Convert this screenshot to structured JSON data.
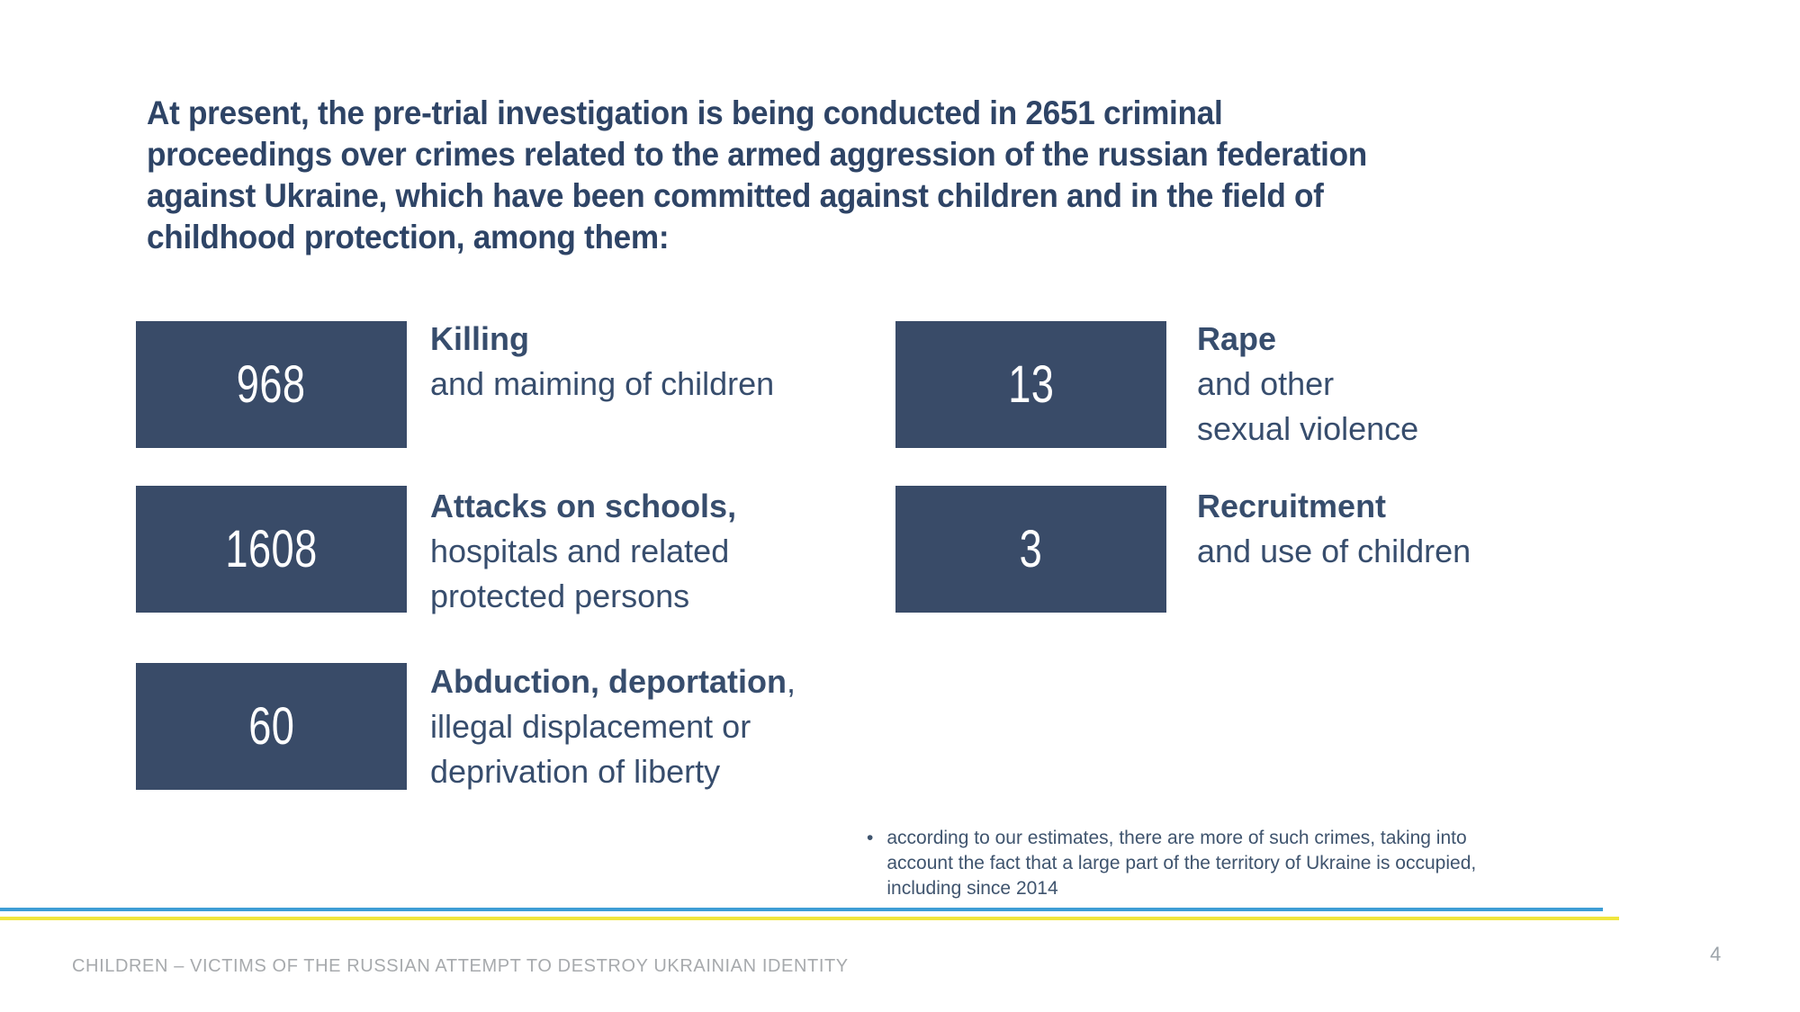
{
  "slide": {
    "title_full": "At present, the pre-trial investigation is being conducted in 2651 criminal proceedings over crimes related to the armed aggression of the russian federation against Ukraine, which have been committed against children and in the field of childhood protection, among them:",
    "title_lines": [
      "At present, the pre-trial investigation is being conducted in 2651 criminal",
      "proceedings over crimes related to the armed aggression of the russian federation",
      "against Ukraine, which have been committed against children and in the field of",
      "childhood protection, among them:"
    ],
    "stats": [
      {
        "value": "968",
        "heading": "Killing",
        "heading_suffix": "",
        "lines": [
          "and maiming of children"
        ]
      },
      {
        "value": "1608",
        "heading": "Attacks on schools,",
        "heading_suffix": "",
        "lines": [
          "hospitals and related",
          "protected persons"
        ]
      },
      {
        "value": "60",
        "heading": "Abduction, deportation",
        "heading_suffix": ",",
        "lines": [
          "illegal displacement or",
          "deprivation of liberty"
        ]
      },
      {
        "value": "13",
        "heading": "Rape",
        "heading_suffix": "",
        "lines": [
          "and other",
          "sexual violence"
        ]
      },
      {
        "value": "3",
        "heading": "Recruitment",
        "heading_suffix": "",
        "lines": [
          "and use of children"
        ]
      }
    ],
    "note": {
      "bullet": "•",
      "text_full": "according to our estimates, there are more of such crimes, taking into account the fact that a large part of the territory of Ukraine is occupied, including since 2014",
      "lines": [
        "according to our estimates, there are more of such crimes, taking into",
        "account the fact that a large part of the territory of Ukraine is occupied,",
        "including since 2014"
      ]
    },
    "footer": "CHILDREN – VICTIMS OF THE RUSSIAN ATTEMPT TO DESTROY UKRAINIAN IDENTITY",
    "page_number": "4",
    "colors": {
      "box_fill": "#394B68",
      "title_text": "#2E4466",
      "label_text": "#374D6D",
      "note_text": "#3F546E",
      "footer_text": "#A7AAAD",
      "line_blue": "#3D9DD5",
      "line_yellow": "#F0E63D"
    }
  }
}
